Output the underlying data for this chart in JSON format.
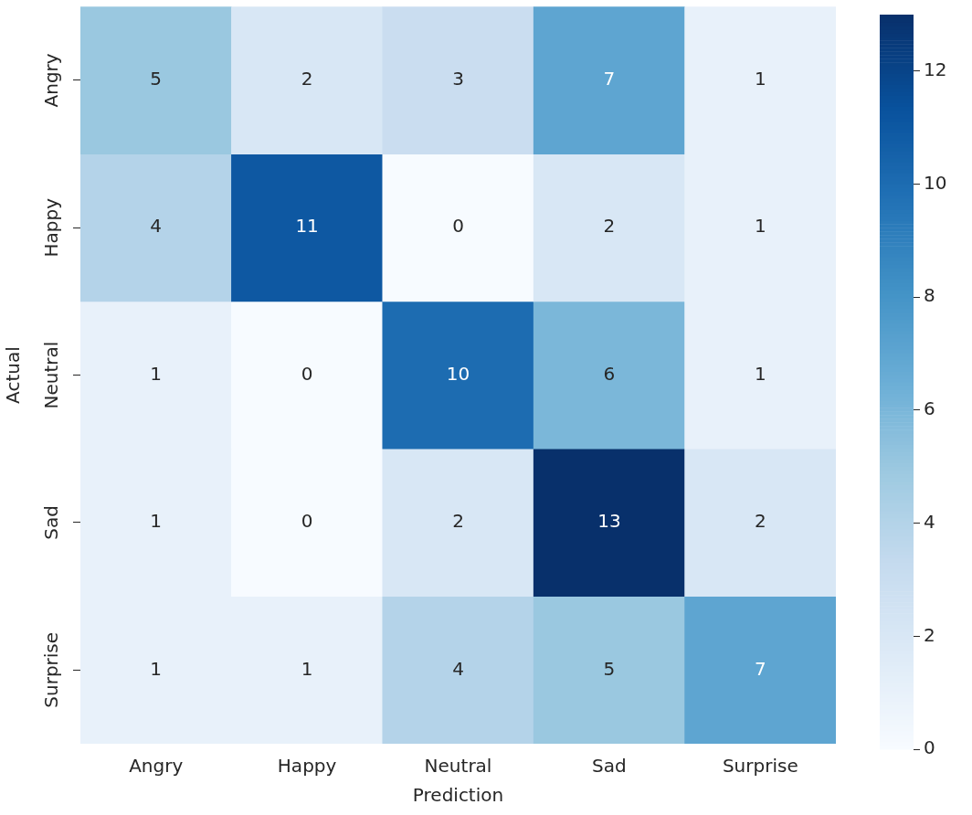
{
  "chart_data": {
    "type": "heatmap",
    "xlabel": "Prediction",
    "ylabel": "Actual",
    "categories": [
      "Angry",
      "Happy",
      "Neutral",
      "Sad",
      "Surprise"
    ],
    "y_categories": [
      "Angry",
      "Happy",
      "Neutral",
      "Sad",
      "Surprise"
    ],
    "cells": [
      [
        5,
        2,
        3,
        7,
        1
      ],
      [
        4,
        11,
        0,
        2,
        1
      ],
      [
        1,
        0,
        10,
        6,
        1
      ],
      [
        1,
        0,
        2,
        13,
        2
      ],
      [
        1,
        1,
        4,
        5,
        7
      ]
    ],
    "clim": [
      0,
      13
    ],
    "cticks": [
      0,
      2,
      4,
      6,
      8,
      10,
      12
    ],
    "data_labels": true
  }
}
